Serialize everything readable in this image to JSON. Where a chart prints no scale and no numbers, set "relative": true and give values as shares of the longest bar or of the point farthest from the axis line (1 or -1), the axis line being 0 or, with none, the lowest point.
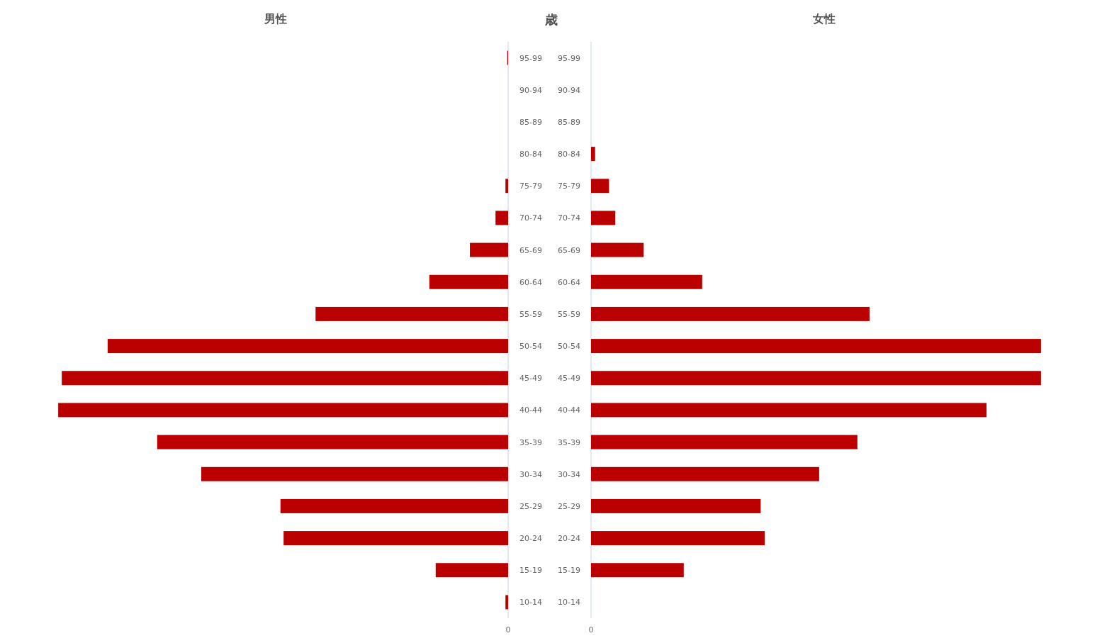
{
  "chart_data": [
    {
      "type": "bar",
      "orientation": "horizontal",
      "relative": true,
      "title": "男性",
      "ylabel": "歳",
      "categories": [
        "95-99",
        "90-94",
        "85-89",
        "80-84",
        "75-79",
        "70-74",
        "65-69",
        "60-64",
        "55-59",
        "50-54",
        "45-49",
        "40-44",
        "35-39",
        "30-34",
        "25-29",
        "20-24",
        "15-19",
        "10-14"
      ],
      "annotations": [
        "0"
      ],
      "series": [
        {
          "color": "#bb0000",
          "values": [
            -0.002,
            0,
            0,
            0,
            -0.006,
            -0.028,
            -0.085,
            -0.175,
            -0.428,
            -0.89,
            -0.992,
            -1,
            -0.78,
            -0.682,
            -0.506,
            -0.499,
            -0.161,
            -0.006
          ]
        }
      ]
    },
    {
      "type": "bar",
      "orientation": "horizontal",
      "relative": true,
      "title": "女性",
      "categories": [
        "95-99",
        "90-94",
        "85-89",
        "80-84",
        "75-79",
        "70-74",
        "65-69",
        "60-64",
        "55-59",
        "50-54",
        "45-49",
        "40-44",
        "35-39",
        "30-34",
        "25-29",
        "20-24",
        "15-19",
        "10-14"
      ],
      "annotations": [
        "0"
      ],
      "series": [
        {
          "color": "#bb0000",
          "values": [
            0,
            0,
            0,
            0.009,
            0.04,
            0.054,
            0.117,
            0.247,
            0.619,
            1,
            1,
            0.879,
            0.592,
            0.507,
            0.377,
            0.386,
            0.206,
            0
          ]
        }
      ]
    }
  ]
}
